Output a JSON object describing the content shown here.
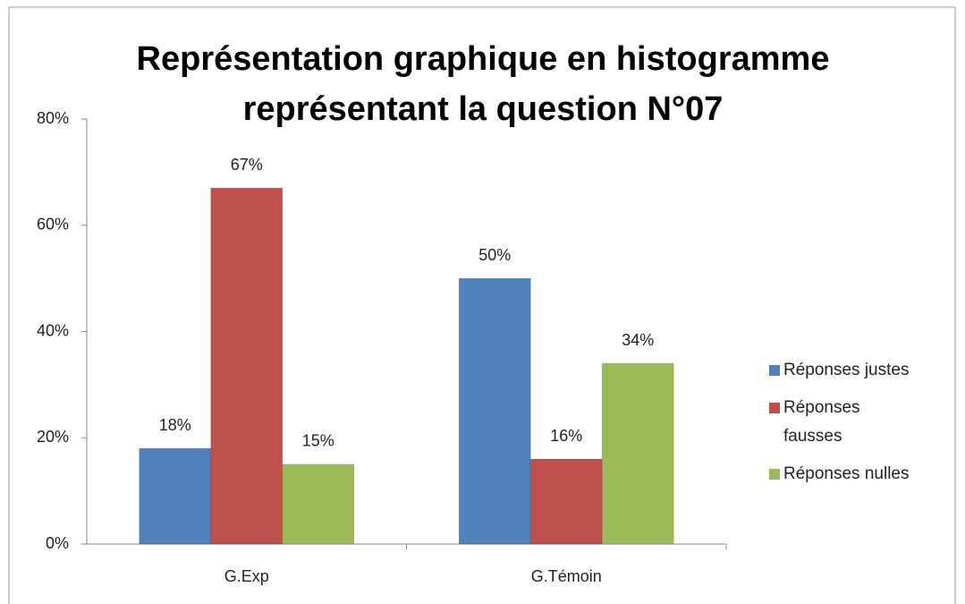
{
  "chart_data": {
    "type": "bar",
    "title": "Représentation graphique en histogramme représentant la question N°07",
    "categories": [
      "G.Exp",
      "G.Témoin"
    ],
    "series": [
      {
        "name": "Réponses justes",
        "color": "#4f81bd",
        "values": [
          18,
          50
        ],
        "value_labels": [
          "18%",
          "50%"
        ]
      },
      {
        "name": "Réponses fausses",
        "color": "#c0504d",
        "values": [
          67,
          16
        ],
        "value_labels": [
          "67%",
          "16%"
        ]
      },
      {
        "name": "Réponses nulles",
        "color": "#9bbb59",
        "values": [
          15,
          34
        ],
        "value_labels": [
          "15%",
          "34%"
        ]
      }
    ],
    "ylim": [
      0,
      80
    ],
    "yticks": [
      {
        "value": 0,
        "label": "0%"
      },
      {
        "value": 20,
        "label": "20%"
      },
      {
        "value": 40,
        "label": "40%"
      },
      {
        "value": 60,
        "label": "60%"
      },
      {
        "value": 80,
        "label": "80%"
      }
    ],
    "grid": false,
    "legend": "right"
  }
}
